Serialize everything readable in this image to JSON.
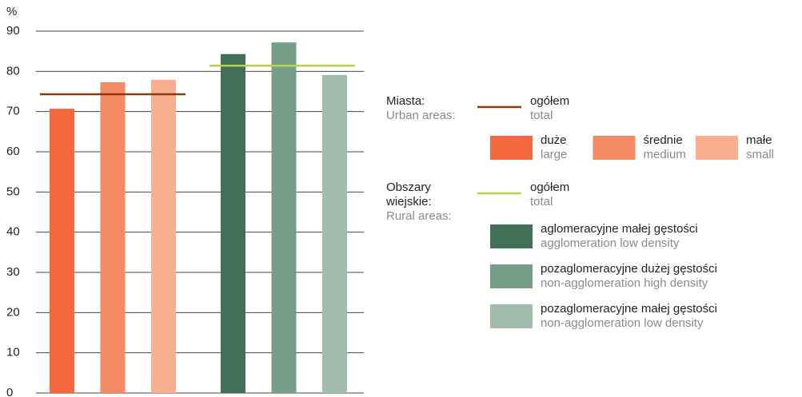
{
  "chart_data": {
    "type": "bar",
    "y_label": "%",
    "ylim": [
      0,
      90
    ],
    "yticks": [
      0,
      10,
      20,
      30,
      40,
      50,
      60,
      70,
      80,
      90
    ],
    "grid": true,
    "groups": [
      {
        "label": "Miasta:",
        "label_en": "Urban areas:",
        "total": {
          "name": "ogółem",
          "name_en": "total",
          "color": "#8b3b10",
          "value": 74.3
        },
        "bars": [
          {
            "name": "duże",
            "name_en": "large",
            "color": "#f4683f",
            "value": 70.7
          },
          {
            "name": "średnie",
            "name_en": "medium",
            "color": "#f48a64",
            "value": 77.3
          },
          {
            "name": "małe",
            "name_en": "small",
            "color": "#f9ae8f",
            "value": 77.9
          }
        ]
      },
      {
        "label": "Obszary wiejskie:",
        "label_en": "Rural areas:",
        "total": {
          "name": "ogółem",
          "name_en": "total",
          "color": "#b8d24a",
          "value": 81.4
        },
        "bars": [
          {
            "name": "aglomeracyjne małej gęstości",
            "name_en": "agglomeration low density",
            "color": "#416f58",
            "value": 84.3
          },
          {
            "name": "pozaglomeracyjne dużej gęstości",
            "name_en": "non-agglomeration high density",
            "color": "#769d87",
            "value": 87.2
          },
          {
            "name": "pozaglomeracyjne małej gęstości",
            "name_en": "non-agglomeration low density",
            "color": "#a2bcad",
            "value": 79.1
          }
        ]
      }
    ]
  }
}
